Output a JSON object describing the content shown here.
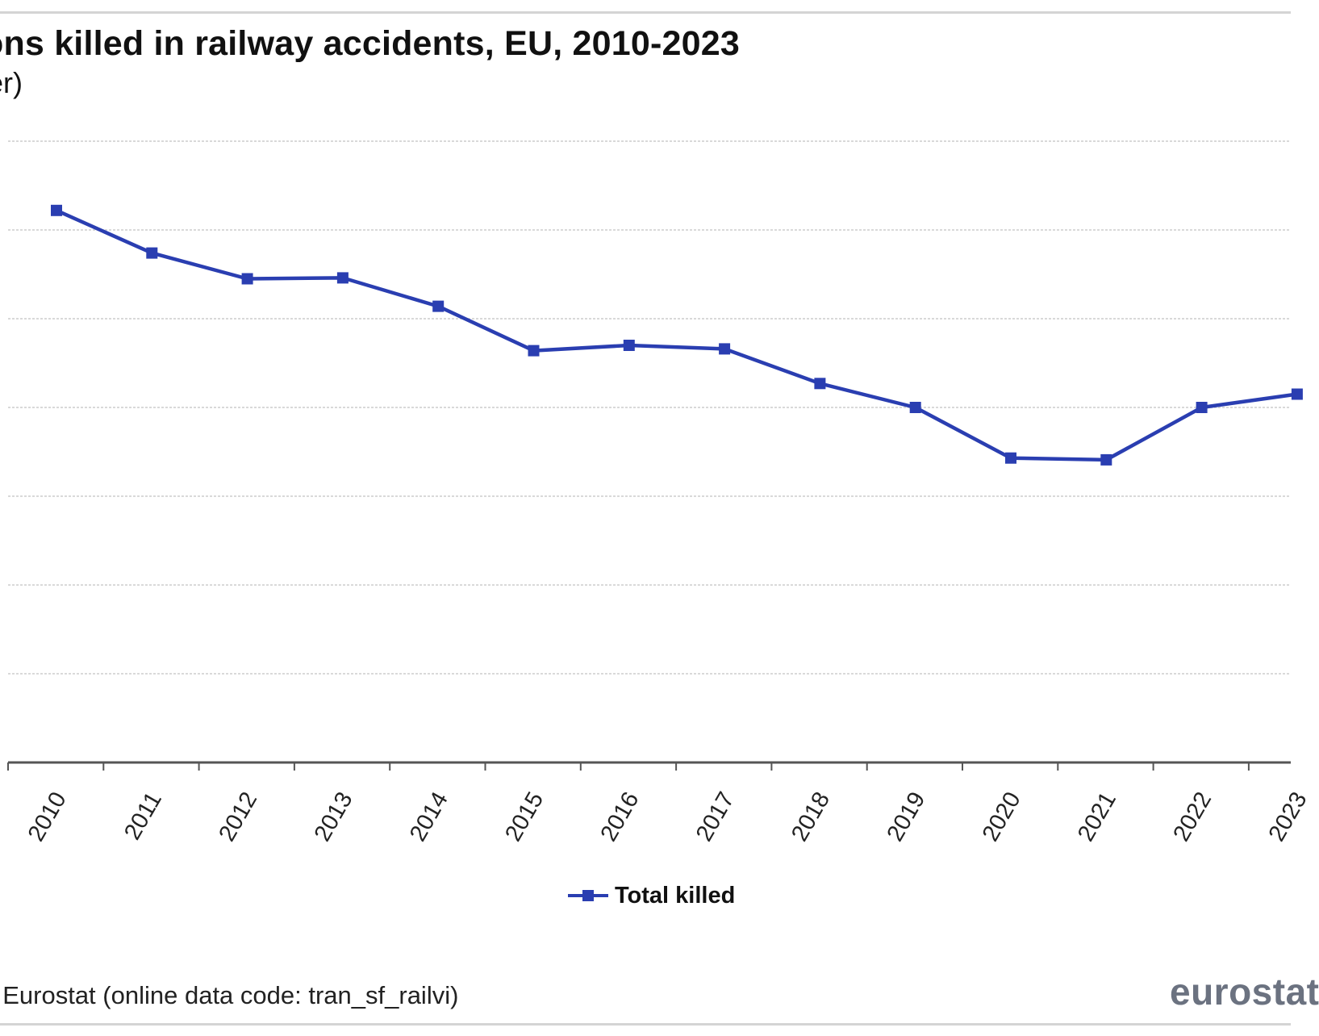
{
  "chart_data": {
    "type": "line",
    "title": "ons killed in railway accidents, EU, 2010-2023",
    "subtitle": "er)",
    "categories": [
      "2010",
      "2011",
      "2012",
      "2013",
      "2014",
      "2015",
      "2016",
      "2017",
      "2018",
      "2019",
      "2020",
      "2021",
      "2022",
      "2023"
    ],
    "series": [
      {
        "name": "Total killed",
        "color": "#2a3eb1",
        "marker": "square",
        "values": [
          1322,
          1274,
          1245,
          1246,
          1214,
          1164,
          1170,
          1166,
          1127,
          1100,
          1043,
          1041,
          1100,
          1115
        ]
      }
    ],
    "ylim": [
      700,
      1400
    ],
    "gridlines": [
      700,
      800,
      900,
      1000,
      1100,
      1200,
      1300,
      1400
    ],
    "y_tick_labels_visible": false,
    "grid": true,
    "legend_position": "bottom",
    "source": ": Eurostat (online data code: tran_sf_railvi)",
    "logo_text": "eurostat"
  }
}
